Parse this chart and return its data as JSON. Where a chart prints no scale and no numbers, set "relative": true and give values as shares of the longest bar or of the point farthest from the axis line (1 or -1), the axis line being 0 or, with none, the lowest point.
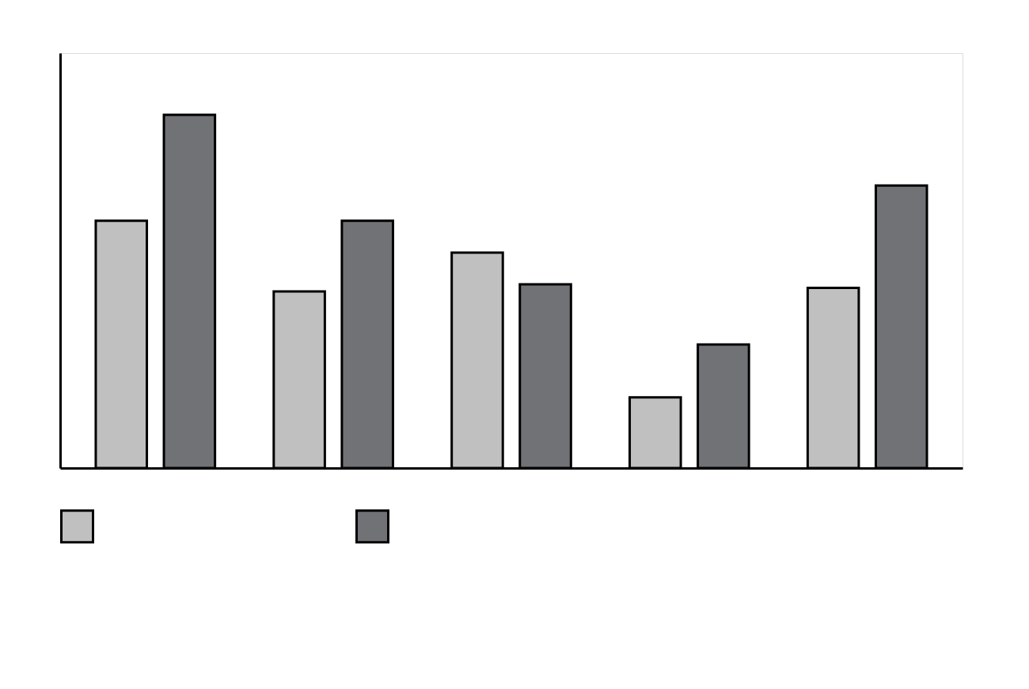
{
  "chart_data": {
    "type": "bar",
    "relative": true,
    "categories": [
      null,
      null,
      null,
      null,
      null
    ],
    "series": [
      {
        "color": "#c0c0c1",
        "values": [
          0.7,
          0.5,
          0.61,
          0.2,
          0.51
        ]
      },
      {
        "color": "#717276",
        "values": [
          1,
          0.7,
          0.52,
          0.35,
          0.8
        ]
      }
    ],
    "grid": false
  }
}
